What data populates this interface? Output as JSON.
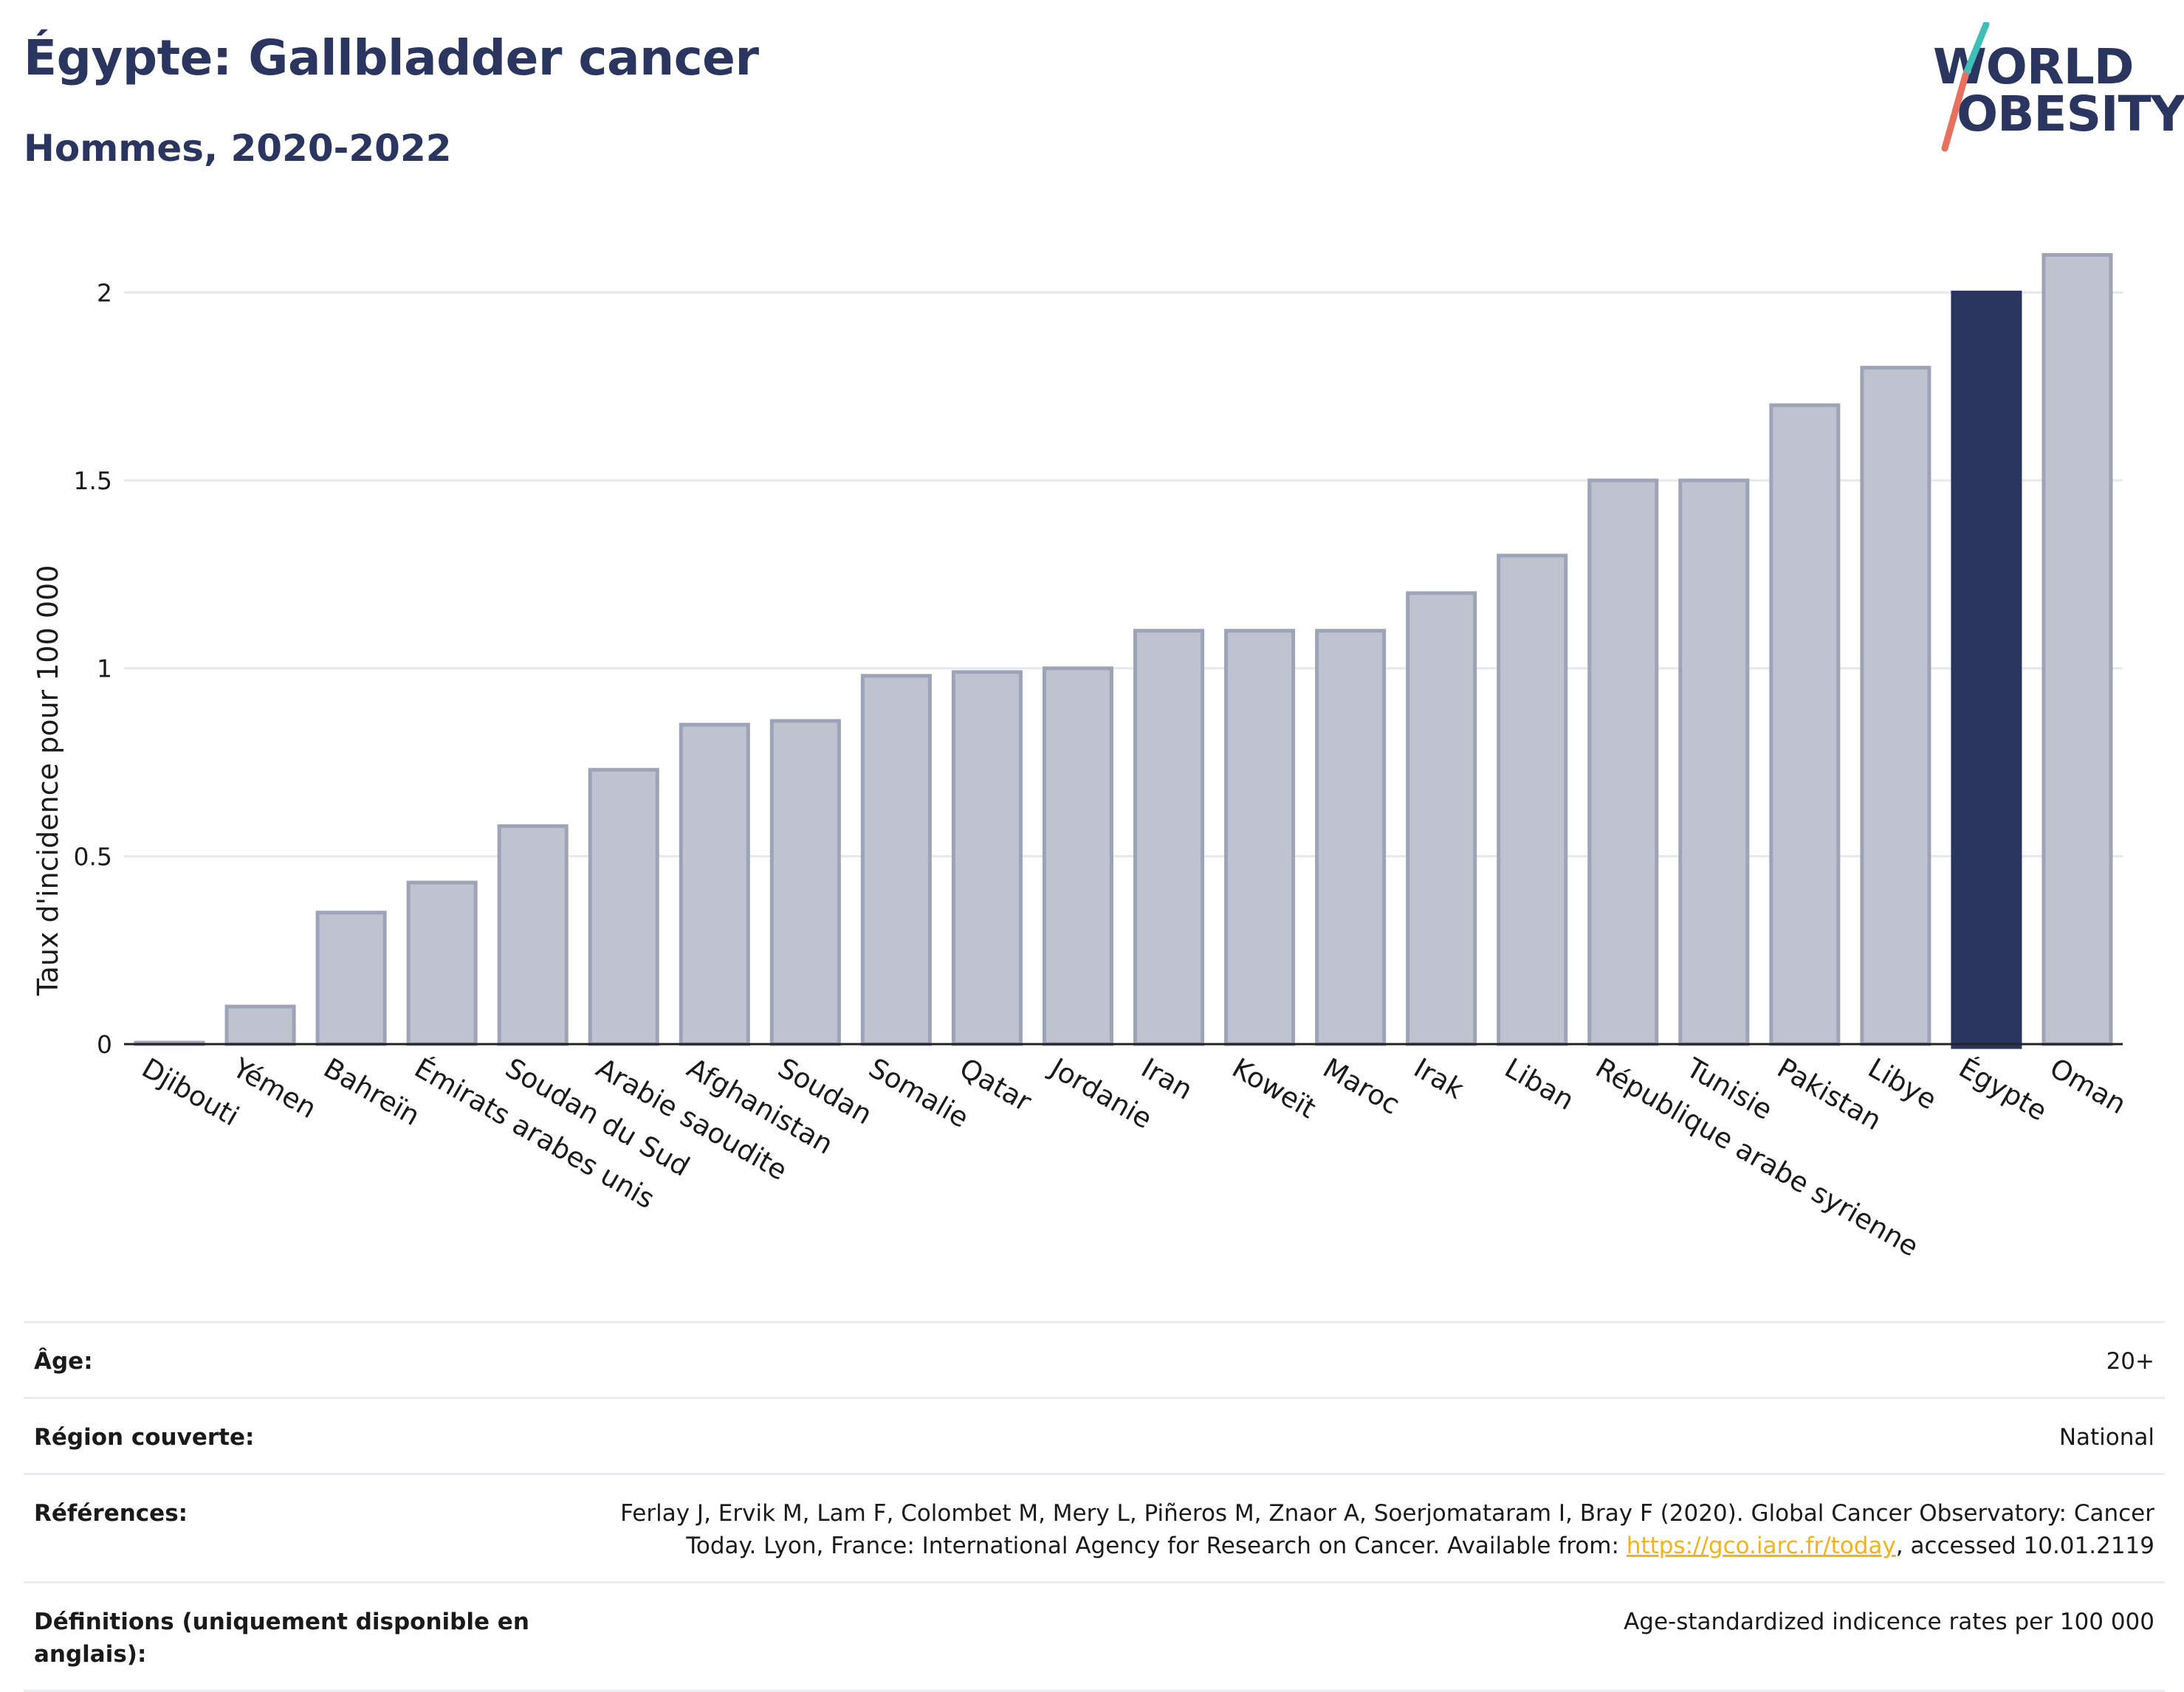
{
  "header": {
    "title": "Égypte: Gallbladder cancer",
    "subtitle": "Hommes, 2020-2022"
  },
  "logo": {
    "line1": "WORLD",
    "line2": "OBESITY",
    "colors": {
      "text": "#2a3560",
      "slash_top": "#3fbfb8",
      "slash_bottom": "#e8705f"
    }
  },
  "chart_data": {
    "type": "bar",
    "title": "Égypte: Gallbladder cancer",
    "subtitle": "Hommes, 2020-2022",
    "xlabel": "",
    "ylabel": "Taux d'incidence pour 100 000",
    "ylim": [
      0,
      2.15
    ],
    "yticks": [
      0,
      0.5,
      1,
      1.5,
      2
    ],
    "ytick_labels": [
      "0",
      "0.5",
      "1",
      "1.5",
      "2"
    ],
    "grid": true,
    "highlight": "Égypte",
    "colors": {
      "bar": "#bfc3d0",
      "bar_border": "#9ea4b8",
      "highlight": "#2a3560"
    },
    "categories": [
      "Djibouti",
      "Yémen",
      "Bahreïn",
      "Émirats arabes unis",
      "Soudan du Sud",
      "Arabie saoudite",
      "Afghanistan",
      "Soudan",
      "Somalie",
      "Qatar",
      "Jordanie",
      "Iran",
      "Koweït",
      "Maroc",
      "Irak",
      "Liban",
      "République arabe syrienne",
      "Tunisie",
      "Pakistan",
      "Libye",
      "Égypte",
      "Oman"
    ],
    "values": [
      0.0,
      0.1,
      0.35,
      0.43,
      0.58,
      0.73,
      0.85,
      0.86,
      0.98,
      0.99,
      1.0,
      1.1,
      1.1,
      1.1,
      1.2,
      1.3,
      1.5,
      1.5,
      1.7,
      1.8,
      2.0,
      2.1
    ]
  },
  "meta": {
    "age_label": "Âge:",
    "age_value": "20+",
    "region_label": "Région couverte:",
    "region_value": "National",
    "references_label": "Références:",
    "references_text_1": "Ferlay J, Ervik M, Lam F, Colombet M, Mery L, Piñeros M, Znaor A, Soerjomataram I, Bray F (2020). Global Cancer Observatory: Cancer Today. Lyon, France: International Agency for Research on Cancer. Available from: ",
    "references_link": "https://gco.iarc.fr/today",
    "references_text_2": ", accessed 10.01.2119",
    "definitions_label": "Définitions (uniquement disponible en anglais):",
    "definitions_value": "Age-standardized indicence rates per 100 000"
  }
}
